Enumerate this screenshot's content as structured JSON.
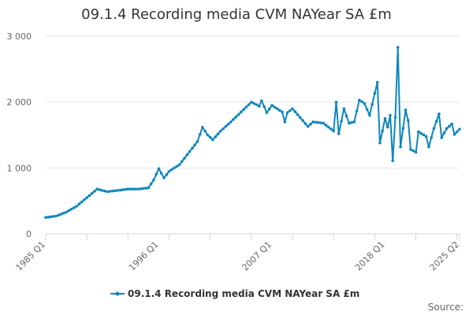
{
  "chart_data": {
    "type": "line",
    "title": "09.1.4 Recording media CVM NAYear SA £m",
    "xlabel": "",
    "ylabel": "",
    "ylim": [
      0,
      3000
    ],
    "y_ticks": [
      0,
      1000,
      2000,
      3000
    ],
    "y_tick_labels": [
      "0",
      "1 000",
      "2 000",
      "3 000"
    ],
    "x_range": [
      "1985 Q1",
      "2025 Q2"
    ],
    "x_tick_labels": [
      "1985 Q1",
      "1996 Q1",
      "2007 Q1",
      "2018 Q1",
      "2025 Q2"
    ],
    "grid": "horizontal",
    "legend_position": "bottom",
    "source_label": "Source:",
    "series": [
      {
        "name": "09.1.4 Recording media CVM NAYear SA £m",
        "color": "#0e86c0",
        "marker": "circle",
        "x_start": "1985 Q1",
        "frequency": "quarterly",
        "keypoints": [
          [
            "1985 Q1",
            250
          ],
          [
            "1986 Q1",
            270
          ],
          [
            "1987 Q1",
            330
          ],
          [
            "1988 Q1",
            420
          ],
          [
            "1989 Q1",
            550
          ],
          [
            "1990 Q1",
            680
          ],
          [
            "1991 Q1",
            640
          ],
          [
            "1992 Q1",
            660
          ],
          [
            "1993 Q1",
            680
          ],
          [
            "1994 Q1",
            680
          ],
          [
            "1995 Q1",
            700
          ],
          [
            "1995 Q3",
            820
          ],
          [
            "1996 Q1",
            990
          ],
          [
            "1996 Q3",
            850
          ],
          [
            "1997 Q1",
            950
          ],
          [
            "1998 Q1",
            1050
          ],
          [
            "1999 Q1",
            1250
          ],
          [
            "1999 Q4",
            1400
          ],
          [
            "2000 Q2",
            1620
          ],
          [
            "2000 Q4",
            1500
          ],
          [
            "2001 Q2",
            1430
          ],
          [
            "2002 Q1",
            1560
          ],
          [
            "2003 Q1",
            1700
          ],
          [
            "2004 Q1",
            1850
          ],
          [
            "2005 Q1",
            2000
          ],
          [
            "2005 Q4",
            1940
          ],
          [
            "2006 Q1",
            2020
          ],
          [
            "2006 Q3",
            1840
          ],
          [
            "2007 Q1",
            1950
          ],
          [
            "2007 Q3",
            1900
          ],
          [
            "2008 Q1",
            1850
          ],
          [
            "2008 Q2",
            1700
          ],
          [
            "2008 Q3",
            1840
          ],
          [
            "2009 Q1",
            1900
          ],
          [
            "2010 Q1",
            1720
          ],
          [
            "2010 Q3",
            1630
          ],
          [
            "2011 Q1",
            1700
          ],
          [
            "2012 Q1",
            1680
          ],
          [
            "2013 Q1",
            1560
          ],
          [
            "2013 Q2",
            2000
          ],
          [
            "2013 Q3",
            1520
          ],
          [
            "2014 Q1",
            1900
          ],
          [
            "2014 Q3",
            1680
          ],
          [
            "2015 Q1",
            1700
          ],
          [
            "2015 Q3",
            2030
          ],
          [
            "2016 Q1",
            1980
          ],
          [
            "2016 Q3",
            1800
          ],
          [
            "2017 Q2",
            2300
          ],
          [
            "2017 Q3",
            1380
          ],
          [
            "2018 Q1",
            1750
          ],
          [
            "2018 Q2",
            1620
          ],
          [
            "2018 Q3",
            1800
          ],
          [
            "2018 Q4",
            1110
          ],
          [
            "2019 Q1",
            1770
          ],
          [
            "2019 Q2",
            2830
          ],
          [
            "2019 Q3",
            1320
          ],
          [
            "2020 Q1",
            1880
          ],
          [
            "2020 Q2",
            1720
          ],
          [
            "2020 Q3",
            1280
          ],
          [
            "2021 Q1",
            1240
          ],
          [
            "2021 Q2",
            1550
          ],
          [
            "2022 Q1",
            1480
          ],
          [
            "2022 Q2",
            1320
          ],
          [
            "2022 Q4",
            1600
          ],
          [
            "2023 Q2",
            1820
          ],
          [
            "2023 Q3",
            1460
          ],
          [
            "2024 Q1",
            1600
          ],
          [
            "2024 Q3",
            1670
          ],
          [
            "2024 Q4",
            1510
          ],
          [
            "2025 Q2",
            1590
          ]
        ]
      }
    ]
  }
}
